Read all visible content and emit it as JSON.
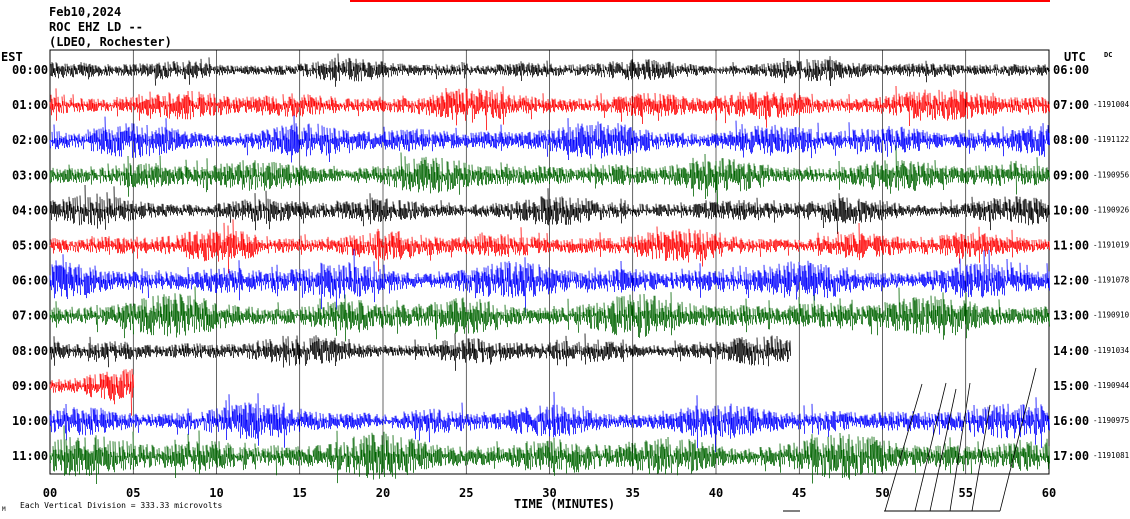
{
  "header": {
    "date": "Feb10,2024",
    "station": "ROC EHZ LD --",
    "network": "(LDEO, Rochester)"
  },
  "left_timezone": "EST",
  "right_timezone": "UTC",
  "dc_label": "DC",
  "footer": {
    "scale_note": "Each Vertical Division = 333.33 microvolts",
    "corner_mark": "M"
  },
  "colors": {
    "black": "#000000",
    "red": "#ff0000",
    "blue": "#0000ff",
    "green": "#006400",
    "grid": "#000000"
  },
  "chart_data": {
    "type": "line",
    "title": "ROC EHZ LD --",
    "xlabel": "TIME (MINUTES)",
    "xlim": [
      0,
      60
    ],
    "x_ticks": [
      "00",
      "05",
      "10",
      "15",
      "20",
      "25",
      "30",
      "35",
      "40",
      "45",
      "50",
      "55",
      "60"
    ],
    "rows": [
      {
        "est": "00:00",
        "utc": "06:00",
        "dc": "",
        "color": "black",
        "amplitude": 0.35
      },
      {
        "est": "01:00",
        "utc": "07:00",
        "dc": "1191004",
        "color": "red",
        "amplitude": 0.5
      },
      {
        "est": "02:00",
        "utc": "08:00",
        "dc": "1191122",
        "color": "blue",
        "amplitude": 0.55
      },
      {
        "est": "03:00",
        "utc": "09:00",
        "dc": "1190956",
        "color": "green",
        "amplitude": 0.55
      },
      {
        "est": "04:00",
        "utc": "10:00",
        "dc": "1190926",
        "color": "black",
        "amplitude": 0.45
      },
      {
        "est": "05:00",
        "utc": "11:00",
        "dc": "1191019",
        "color": "red",
        "amplitude": 0.5
      },
      {
        "est": "06:00",
        "utc": "12:00",
        "dc": "1191078",
        "color": "blue",
        "amplitude": 0.6
      },
      {
        "est": "07:00",
        "utc": "13:00",
        "dc": "1190910",
        "color": "green",
        "amplitude": 0.65
      },
      {
        "est": "08:00",
        "utc": "14:00",
        "dc": "1191034",
        "color": "black",
        "amplitude": 0.45,
        "trace_end_minute": 44.5
      },
      {
        "est": "09:00",
        "utc": "15:00",
        "dc": "1190944",
        "color": "red",
        "amplitude": 0.5,
        "trace_end_minute": 5
      },
      {
        "est": "10:00",
        "utc": "16:00",
        "dc": "1190975",
        "color": "blue",
        "amplitude": 0.55
      },
      {
        "est": "11:00",
        "utc": "17:00",
        "dc": "1191081",
        "color": "green",
        "amplitude": 0.7
      }
    ]
  }
}
